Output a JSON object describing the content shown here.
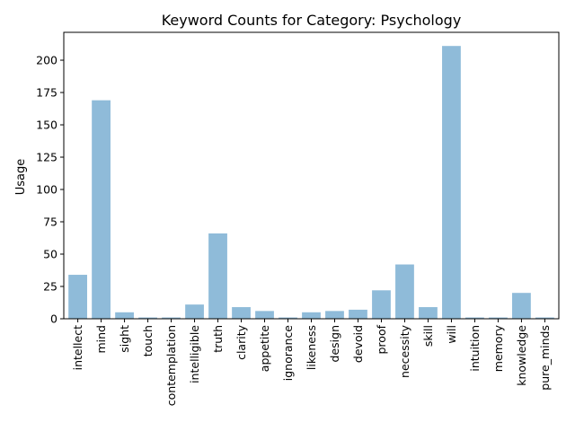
{
  "chart_data": {
    "type": "bar",
    "title": "Keyword Counts for Category: Psychology",
    "xlabel": "",
    "ylabel": "Usage",
    "categories": [
      "intellect",
      "mind",
      "sight",
      "touch",
      "contemplation",
      "intelligible",
      "truth",
      "clarity",
      "appetite",
      "ignorance",
      "likeness",
      "design",
      "devoid",
      "proof",
      "necessity",
      "skill",
      "will",
      "intuition",
      "memory",
      "knowledge",
      "pure_minds"
    ],
    "values": [
      34,
      169,
      5,
      1,
      1,
      11,
      66,
      9,
      6,
      1,
      5,
      6,
      7,
      22,
      42,
      9,
      211,
      1,
      1,
      20,
      1
    ],
    "ylim": [
      0,
      221.55
    ],
    "yticks": [
      0,
      25,
      50,
      75,
      100,
      125,
      150,
      175,
      200
    ],
    "grid": false,
    "bar_color": "#8fbbd9",
    "axis_color": "#000000"
  }
}
